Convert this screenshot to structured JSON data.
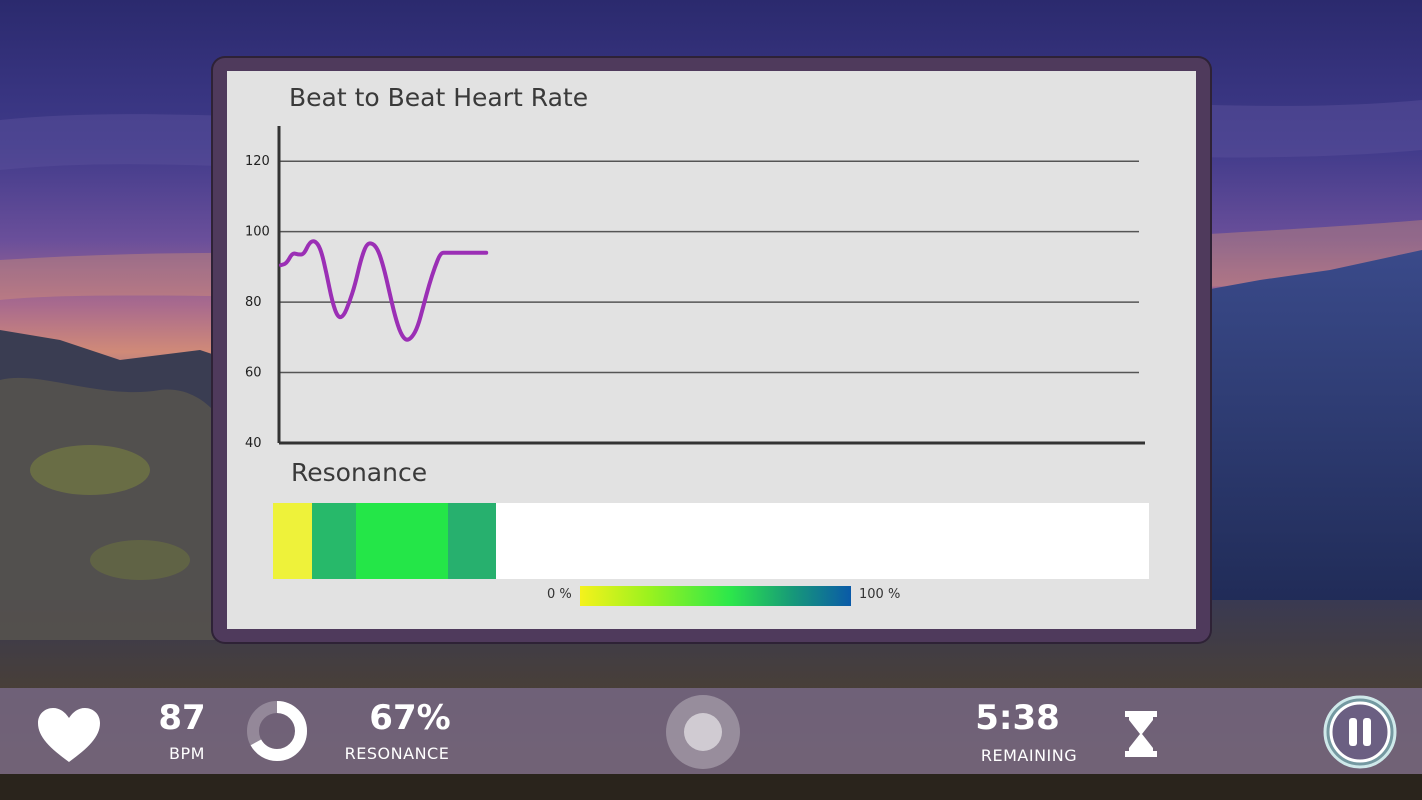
{
  "chart": {
    "title": "Beat to Beat Heart Rate",
    "series_color": "#9b2fb5"
  },
  "chart_data": {
    "type": "line",
    "title": "Beat to Beat Heart Rate",
    "xlabel": "",
    "ylabel": "",
    "ylim": [
      40,
      130
    ],
    "yticks": [
      40,
      60,
      80,
      100,
      120
    ],
    "grid": true,
    "series": [
      {
        "x": [
          0,
          1,
          2,
          3,
          4,
          5,
          6,
          7,
          8,
          9,
          10,
          11,
          12,
          13,
          14,
          15,
          16,
          17,
          18,
          19,
          20,
          21,
          22,
          23,
          24,
          25,
          26,
          27,
          28,
          29,
          30,
          31,
          32,
          33,
          34,
          35,
          36
        ],
        "values": [
          90.5,
          91,
          94,
          93.5,
          93.5,
          97,
          97.5,
          95,
          88,
          80,
          75.5,
          76,
          80,
          85,
          92,
          96.5,
          96.8,
          95,
          90,
          83,
          76,
          71,
          69,
          70,
          73,
          79,
          85,
          90,
          94,
          94,
          94,
          94,
          94,
          94,
          94,
          94,
          94
        ]
      }
    ]
  },
  "resonance": {
    "title": "Resonance",
    "segments": [
      {
        "start": 0.0,
        "end": 0.045,
        "color": "#eef23a"
      },
      {
        "start": 0.045,
        "end": 0.095,
        "color": "#27b96a"
      },
      {
        "start": 0.095,
        "end": 0.2,
        "color": "#24e648"
      },
      {
        "start": 0.2,
        "end": 0.255,
        "color": "#27b06e"
      }
    ],
    "scale_min_label": "0 %",
    "scale_max_label": "100 %"
  },
  "status": {
    "bpm_value": "87",
    "bpm_label": "BPM",
    "resonance_value": "67%",
    "resonance_label": "RESONANCE",
    "resonance_fraction": 0.67,
    "time_value": "5:38",
    "time_label": "REMAINING"
  },
  "icons": {
    "heart": "heart-icon",
    "resonance_ring": "resonance-ring-icon",
    "record": "record-button",
    "hourglass": "hourglass-icon",
    "pause": "pause-icon"
  }
}
